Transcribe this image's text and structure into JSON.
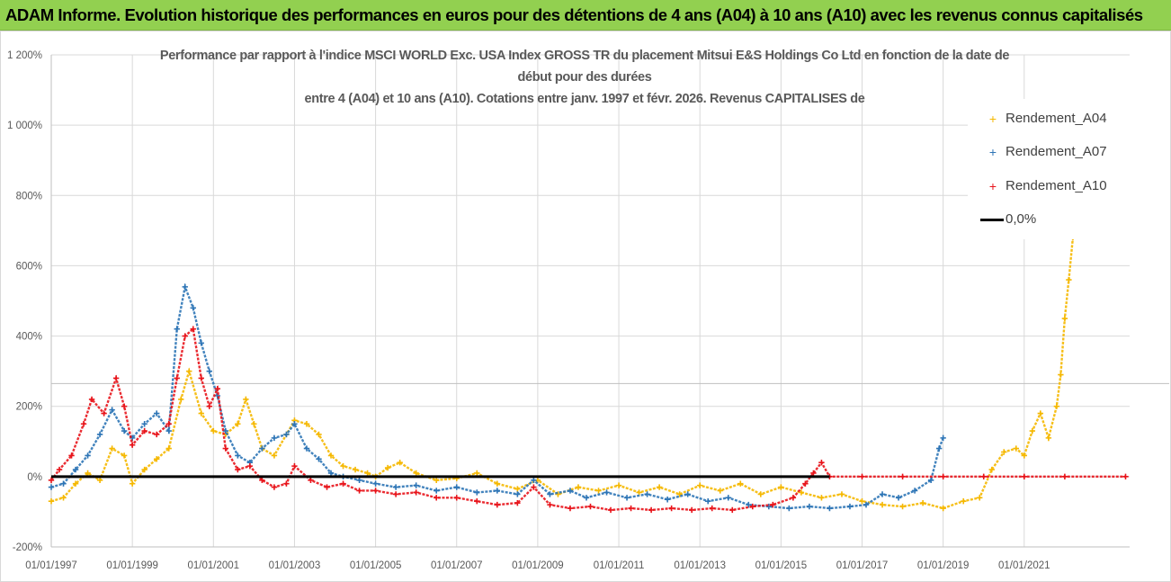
{
  "banner": {
    "title": "ADAM Informe. Evolution historique des performances en euros pour des détentions de 4 ans (A04) à 10 ans (A10) avec les revenus connus capitalisés"
  },
  "chart_data": {
    "type": "scatter",
    "title_lines": [
      "Performance par rapport à l'indice MSCI WORLD Exc. USA Index GROSS TR  du placement Mitsui E&S Holdings Co Ltd en fonction de la date de",
      "début pour des durées",
      "entre 4 (A04) et 10 ans (A10).  Cotations entre janv. 1997 et févr. 2026. Revenus CAPITALISES de"
    ],
    "xlabel": "",
    "ylabel": "",
    "x_unit": "year",
    "xlim": [
      1997.0,
      2023.6
    ],
    "ylim": [
      -200,
      1200
    ],
    "y_ticks": [
      -200,
      0,
      200,
      400,
      600,
      800,
      1000,
      1200
    ],
    "y_tick_labels": [
      "-200%",
      "0%",
      "200%",
      "400%",
      "600%",
      "800%",
      "1 000%",
      "1 200%"
    ],
    "x_ticks": [
      1997,
      1999,
      2001,
      2003,
      2005,
      2007,
      2009,
      2011,
      2013,
      2015,
      2017,
      2019,
      2021
    ],
    "x_tick_labels": [
      "01/01/1997",
      "01/01/1999",
      "01/01/2001",
      "01/01/2003",
      "01/01/2005",
      "01/01/2007",
      "01/01/2009",
      "01/01/2011",
      "01/01/2013",
      "01/01/2015",
      "01/01/2017",
      "01/01/2019",
      "01/01/2021"
    ],
    "extra_hline_value": 265,
    "series": [
      {
        "name": "Rendement_A04",
        "color": "#f5b800",
        "marker": "+",
        "x": [
          1997.0,
          1997.3,
          1997.6,
          1997.9,
          1998.2,
          1998.5,
          1998.8,
          1999.0,
          1999.3,
          1999.6,
          1999.9,
          2000.2,
          2000.4,
          2000.7,
          2001.0,
          2001.3,
          2001.6,
          2001.8,
          2002.0,
          2002.2,
          2002.5,
          2002.8,
          2003.0,
          2003.3,
          2003.6,
          2003.9,
          2004.2,
          2004.5,
          2004.8,
          2005.0,
          2005.3,
          2005.6,
          2006.0,
          2006.5,
          2007.0,
          2007.5,
          2008.0,
          2008.5,
          2009.0,
          2009.5,
          2010.0,
          2010.5,
          2011.0,
          2011.5,
          2012.0,
          2012.5,
          2013.0,
          2013.5,
          2014.0,
          2014.5,
          2015.0,
          2015.5,
          2016.0,
          2016.5,
          2017.0,
          2017.5,
          2018.0,
          2018.5,
          2019.0,
          2019.5,
          2019.9,
          2020.2,
          2020.5,
          2020.8,
          2021.0,
          2021.2,
          2021.4,
          2021.6,
          2021.8,
          2021.9,
          2022.0,
          2022.1,
          2022.2
        ],
        "y": [
          -70,
          -60,
          -20,
          10,
          -10,
          80,
          60,
          -20,
          20,
          50,
          80,
          220,
          300,
          180,
          130,
          120,
          150,
          220,
          150,
          80,
          60,
          120,
          160,
          150,
          120,
          60,
          30,
          20,
          10,
          0,
          25,
          40,
          10,
          -10,
          -5,
          10,
          -20,
          -35,
          -10,
          -50,
          -30,
          -40,
          -25,
          -45,
          -30,
          -50,
          -25,
          -40,
          -20,
          -50,
          -30,
          -45,
          -60,
          -50,
          -70,
          -80,
          -85,
          -75,
          -90,
          -70,
          -60,
          20,
          70,
          80,
          60,
          130,
          180,
          110,
          200,
          290,
          450,
          560,
          680
        ]
      },
      {
        "name": "Rendement_A07",
        "color": "#2e75b6",
        "marker": "+",
        "x": [
          1997.0,
          1997.3,
          1997.6,
          1997.9,
          1998.2,
          1998.5,
          1998.8,
          1999.0,
          1999.3,
          1999.6,
          1999.9,
          2000.1,
          2000.3,
          2000.5,
          2000.7,
          2000.9,
          2001.1,
          2001.3,
          2001.6,
          2001.9,
          2002.2,
          2002.5,
          2002.8,
          2003.0,
          2003.3,
          2003.6,
          2003.9,
          2004.2,
          2004.6,
          2005.0,
          2005.5,
          2006.0,
          2006.5,
          2007.0,
          2007.5,
          2008.0,
          2008.5,
          2008.9,
          2009.3,
          2009.8,
          2010.2,
          2010.7,
          2011.2,
          2011.7,
          2012.2,
          2012.7,
          2013.2,
          2013.7,
          2014.2,
          2014.7,
          2015.2,
          2015.7,
          2016.2,
          2016.7,
          2017.1,
          2017.5,
          2017.9,
          2018.3,
          2018.7,
          2018.9,
          2019.0
        ],
        "y": [
          -30,
          -20,
          20,
          60,
          120,
          190,
          130,
          110,
          150,
          180,
          130,
          420,
          540,
          480,
          380,
          300,
          230,
          130,
          60,
          40,
          80,
          110,
          120,
          150,
          80,
          50,
          10,
          0,
          -10,
          -20,
          -30,
          -25,
          -40,
          -30,
          -45,
          -40,
          -50,
          -10,
          -50,
          -40,
          -60,
          -45,
          -60,
          -50,
          -65,
          -50,
          -70,
          -60,
          -80,
          -85,
          -90,
          -85,
          -90,
          -85,
          -80,
          -50,
          -60,
          -40,
          -10,
          80,
          110
        ]
      },
      {
        "name": "Rendement_A10",
        "color": "#e8141b",
        "marker": "+",
        "x": [
          1997.0,
          1997.2,
          1997.5,
          1997.8,
          1998.0,
          1998.3,
          1998.6,
          1998.8,
          1999.0,
          1999.3,
          1999.6,
          1999.9,
          2000.1,
          2000.3,
          2000.5,
          2000.7,
          2000.9,
          2001.1,
          2001.3,
          2001.6,
          2001.9,
          2002.2,
          2002.5,
          2002.8,
          2003.0,
          2003.4,
          2003.8,
          2004.2,
          2004.6,
          2005.0,
          2005.5,
          2006.0,
          2006.5,
          2007.0,
          2007.5,
          2008.0,
          2008.5,
          2008.9,
          2009.3,
          2009.8,
          2010.3,
          2010.8,
          2011.3,
          2011.8,
          2012.3,
          2012.8,
          2013.3,
          2013.8,
          2014.3,
          2014.8,
          2015.3,
          2015.6,
          2015.8,
          2016.0,
          2016.2,
          2017.0,
          2018.0,
          2019.0,
          2020.0,
          2021.0,
          2022.0,
          2023.5
        ],
        "y": [
          -10,
          20,
          60,
          150,
          220,
          180,
          280,
          200,
          90,
          130,
          120,
          150,
          280,
          400,
          420,
          280,
          200,
          250,
          80,
          20,
          30,
          -10,
          -30,
          -20,
          30,
          -10,
          -30,
          -20,
          -40,
          -40,
          -50,
          -45,
          -60,
          -60,
          -70,
          -80,
          -75,
          -30,
          -80,
          -90,
          -85,
          -95,
          -90,
          -95,
          -90,
          -95,
          -90,
          -95,
          -85,
          -80,
          -60,
          -20,
          10,
          40,
          0,
          0,
          0,
          0,
          0,
          0,
          0,
          0
        ]
      },
      {
        "name": "0,0%",
        "color": "#000000",
        "marker": "line",
        "x": [
          1997.0,
          2016.2
        ],
        "y": [
          0,
          0
        ]
      }
    ],
    "legend_position": "right"
  }
}
